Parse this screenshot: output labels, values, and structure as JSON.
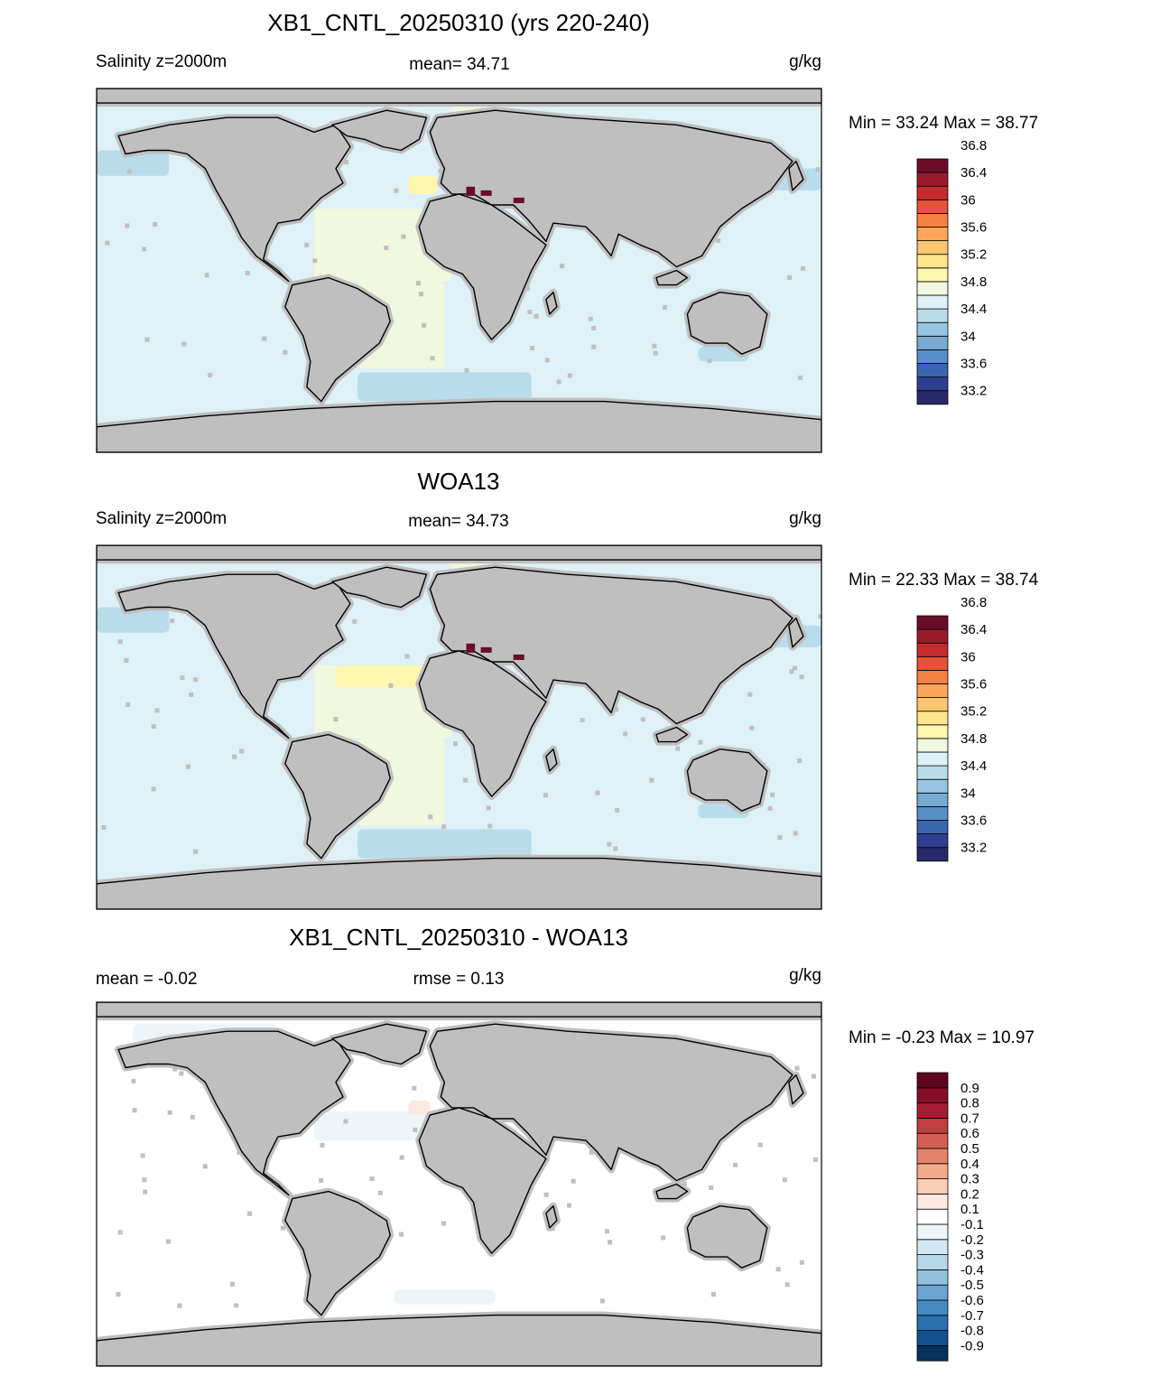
{
  "panels": [
    {
      "title": "XB1_CNTL_20250310 (yrs 220-240)",
      "left_label": "Salinity z=2000m",
      "center_label": "mean=  34.71",
      "units": "g/kg",
      "minmax": "Min =  33.24 Max =  38.77",
      "map_kind": "model"
    },
    {
      "title": "WOA13",
      "left_label": "Salinity z=2000m",
      "center_label": "mean=  34.73",
      "units": "g/kg",
      "minmax": "Min =  22.33 Max =  38.74",
      "map_kind": "obs"
    },
    {
      "title": "XB1_CNTL_20250310 - WOA13",
      "left_label": "mean =  -0.02",
      "center_label": "rmse =   0.13",
      "units": "g/kg",
      "minmax": "Min =  -0.23 Max =  10.97",
      "map_kind": "diff"
    }
  ],
  "colorbars": {
    "salinity": {
      "colors": [
        "#2a2a6a",
        "#2e3e8e",
        "#3a66b0",
        "#5a8ec6",
        "#77abd4",
        "#97c5e1",
        "#b9dcec",
        "#ddf1f7",
        "#f1f8dd",
        "#fff6b0",
        "#ffe58d",
        "#fec671",
        "#fca65a",
        "#f67f44",
        "#e4533a",
        "#c52b2e",
        "#9a1c2b",
        "#6a0d28"
      ],
      "labels": [
        "33.2",
        "33.6",
        "34",
        "34.4",
        "34.8",
        "35.2",
        "35.6",
        "36",
        "36.4",
        "36.8"
      ]
    },
    "difference": {
      "colors": [
        "#07305c",
        "#13508d",
        "#2a6fb0",
        "#4589c2",
        "#6ba3d1",
        "#93c2e0",
        "#b6d7ea",
        "#d3e7f2",
        "#eef5f9",
        "#ffffff",
        "#fde9df",
        "#fbcdb6",
        "#f4a988",
        "#e4826a",
        "#d25f54",
        "#c03d40",
        "#a41c32",
        "#850d27",
        "#5e0520"
      ],
      "labels": [
        "-0.9",
        "-0.8",
        "-0.7",
        "-0.6",
        "-0.5",
        "-0.4",
        "-0.3",
        "-0.2",
        "-0.1",
        "0.1",
        "0.2",
        "0.3",
        "0.4",
        "0.5",
        "0.6",
        "0.7",
        "0.8",
        "0.9"
      ]
    }
  },
  "map_colors": {
    "land": "#bfbfbf",
    "coast": "#000000"
  }
}
